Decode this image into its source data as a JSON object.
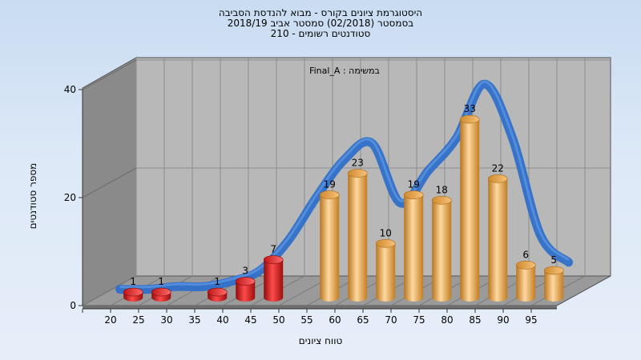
{
  "chart_data": {
    "type": "bar",
    "title": [
      "היסטוגרמת ציונים בקורס - מבוא להנדסת הסביבה",
      "בסמסטר  (02/2018)  סמסטר אביב 2018/19",
      "סטודנטים רשומים - 210"
    ],
    "annotation": "במשימה : Final_A",
    "xlabel": "טווח ציונים",
    "ylabel": "מספר סטודנטים",
    "categories": [
      "20",
      "25",
      "30",
      "35",
      "40",
      "45",
      "50",
      "55",
      "60",
      "65",
      "70",
      "75",
      "80",
      "85",
      "90",
      "95"
    ],
    "series": [
      {
        "values": [
          1,
          1,
          null,
          1,
          3,
          7,
          null,
          19,
          23,
          10,
          19,
          18,
          33,
          22,
          6,
          5
        ],
        "colors": [
          "red",
          "red",
          null,
          "red",
          "red",
          "red",
          null,
          "orange",
          "orange",
          "orange",
          "orange",
          "orange",
          "orange",
          "orange",
          "orange",
          "orange"
        ]
      }
    ],
    "ylim": [
      0,
      40
    ],
    "yticks": [
      "0",
      "20",
      "40"
    ],
    "trend_line": [
      0,
      0,
      0.5,
      0.5,
      1.5,
      3.5,
      9,
      17,
      24,
      27,
      16,
      22,
      28,
      38,
      28,
      10,
      5
    ],
    "grid": true,
    "colors": {
      "red_bar": "#e01818",
      "orange_bar": "#e6a23c",
      "trend": "#2f6fc9",
      "back_wall": "#b8b8b8",
      "side_wall": "#8a8a8a",
      "floor": "#9a9a9a"
    }
  }
}
